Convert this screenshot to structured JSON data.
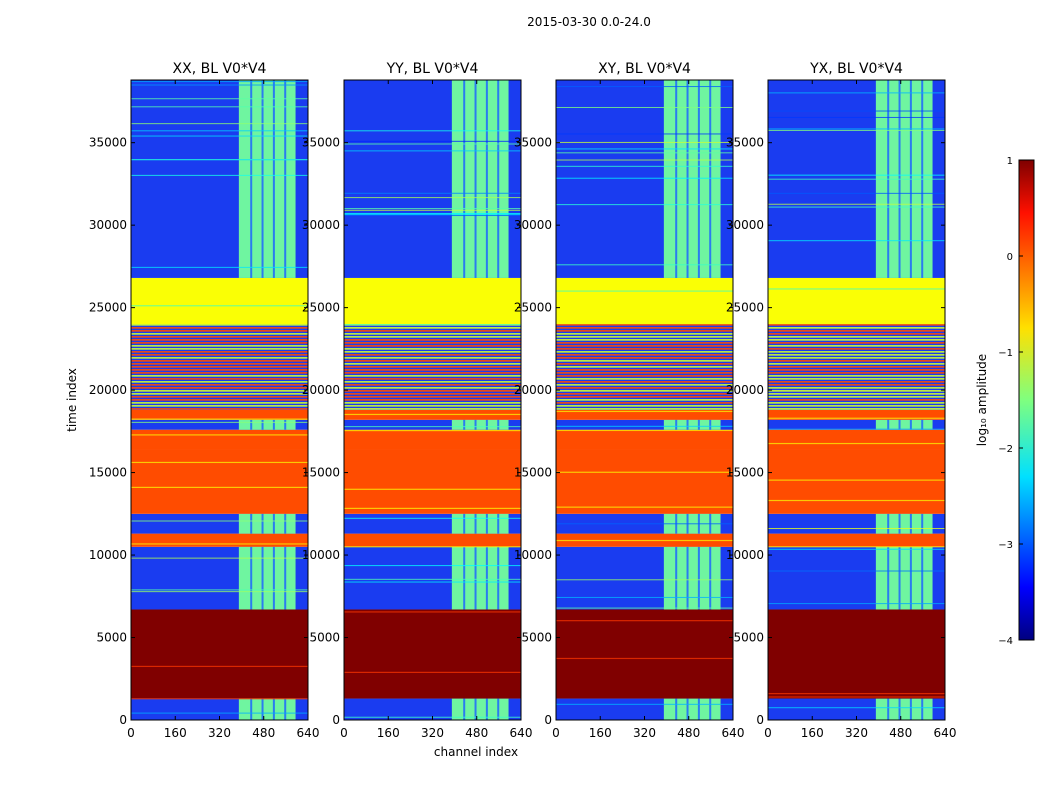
{
  "figure_title": "2015-03-30 0.0-24.0",
  "chart_data": {
    "type": "heatmap",
    "title": "2015-03-30 0.0-24.0",
    "xlabel": "channel index",
    "ylabel": "time index",
    "xlim": [
      0,
      640
    ],
    "ylim": [
      0,
      38800
    ],
    "xticks": [
      "0",
      "160",
      "320",
      "480",
      "640"
    ],
    "yticks": [
      "0",
      "5000",
      "10000",
      "15000",
      "20000",
      "25000",
      "30000",
      "35000"
    ],
    "panels": [
      {
        "title": "XX, BL V0*V4"
      },
      {
        "title": "YY, BL V0*V4"
      },
      {
        "title": "XY, BL V0*V4"
      },
      {
        "title": "YX, BL V0*V4"
      }
    ],
    "colorbar": {
      "label": "log₁₀ amplitude",
      "range": [
        -4,
        1
      ],
      "ticks": [
        "1",
        "0",
        "−1",
        "−2",
        "−3",
        "−4"
      ],
      "colormap": "jet"
    },
    "band_channels": [
      390,
      595
    ],
    "time_blocks": [
      {
        "y0": 0,
        "y1": 1300,
        "kind": "data"
      },
      {
        "y0": 1300,
        "y1": 6700,
        "kind": "flag_high",
        "log_amp": 1.0
      },
      {
        "y0": 6700,
        "y1": 10500,
        "kind": "data"
      },
      {
        "y0": 10500,
        "y1": 11300,
        "kind": "flag_mid",
        "log_amp": 0.0
      },
      {
        "y0": 11300,
        "y1": 12500,
        "kind": "data"
      },
      {
        "y0": 12500,
        "y1": 16400,
        "kind": "flag_mid",
        "log_amp": 0.0
      },
      {
        "y0": 16400,
        "y1": 17600,
        "kind": "flag_mid",
        "log_amp": 0.0
      },
      {
        "y0": 17600,
        "y1": 18200,
        "kind": "data"
      },
      {
        "y0": 18200,
        "y1": 18800,
        "kind": "flag_mid",
        "log_amp": 0.0
      },
      {
        "y0": 18800,
        "y1": 24000,
        "kind": "striped"
      },
      {
        "y0": 24000,
        "y1": 26800,
        "kind": "flag_low",
        "log_amp": -0.9
      },
      {
        "y0": 26800,
        "y1": 38800,
        "kind": "data"
      }
    ]
  }
}
